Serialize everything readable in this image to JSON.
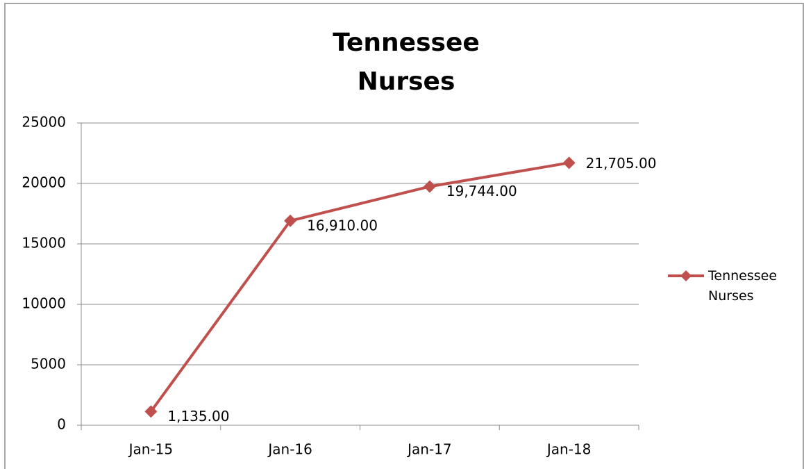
{
  "chart_data": {
    "type": "line",
    "title": "Tennessee\nNurses",
    "categories": [
      "Jan-15",
      "Jan-16",
      "Jan-17",
      "Jan-18"
    ],
    "series": [
      {
        "name": "Tennessee\nNurses",
        "color": "#c0504d",
        "values": [
          1135,
          16910,
          19744,
          21705
        ],
        "value_labels": [
          "1,135.00",
          "16,910.00",
          "19,744.00",
          "21,705.00"
        ]
      }
    ],
    "ylim": [
      0,
      25000
    ],
    "yticks": [
      0,
      5000,
      10000,
      15000,
      20000,
      25000
    ],
    "grid": true,
    "legend": "right"
  }
}
